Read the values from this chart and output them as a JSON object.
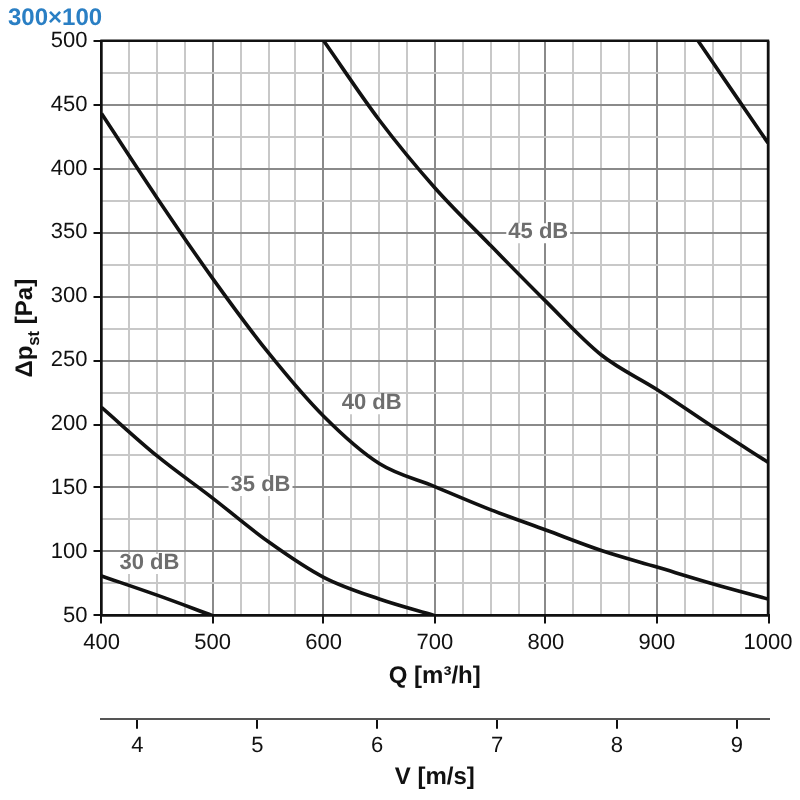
{
  "chart_data": {
    "type": "line",
    "title": "300×100",
    "xlabel": "Q [m³/h]",
    "ylabel": "Δp$_{st}$ [Pa]",
    "x2label": "V [m/s]",
    "xlim": [
      400,
      1000
    ],
    "xticks": [
      400,
      {
        "value": 425,
        "label": null
      },
      {
        "value": 450,
        "label": null
      },
      {
        "value": 475,
        "label": null
      },
      500,
      {
        "value": 525,
        "label": null
      },
      {
        "value": 550,
        "label": null
      },
      {
        "value": 575,
        "label": null
      },
      600,
      {
        "value": 625,
        "label": null
      },
      {
        "value": 650,
        "label": null
      },
      {
        "value": 675,
        "label": null
      },
      700,
      {
        "value": 725,
        "label": null
      },
      {
        "value": 750,
        "label": null
      },
      {
        "value": 775,
        "label": null
      },
      800,
      {
        "value": 825,
        "label": null
      },
      {
        "value": 850,
        "label": null
      },
      {
        "value": 875,
        "label": null
      },
      900,
      {
        "value": 925,
        "label": null
      },
      {
        "value": 950,
        "label": null
      },
      {
        "value": 975,
        "label": null
      },
      1000
    ],
    "ylim": [
      50,
      500
    ],
    "yticks": [
      50,
      {
        "value": 75,
        "label": null
      },
      100,
      {
        "value": 125,
        "label": null
      },
      150,
      {
        "value": 175,
        "label": null
      },
      200,
      {
        "value": 225,
        "label": null
      },
      250,
      {
        "value": 275,
        "label": null
      },
      300,
      {
        "value": 325,
        "label": null
      },
      350,
      {
        "value": 375,
        "label": null
      },
      400,
      {
        "value": 425,
        "label": null
      },
      450,
      {
        "value": 475,
        "label": null
      },
      500
    ],
    "x2lim": [
      3.7,
      9.26
    ],
    "x2ticks": [
      4,
      5,
      6,
      7,
      8,
      9
    ],
    "grid": true,
    "legend": false,
    "marker": "none",
    "line_style": "solid",
    "series": [
      {
        "color": "#111111",
        "x": [
          400,
          450,
          500
        ],
        "values": [
          81,
          66,
          50
        ]
      },
      {
        "color": "#111111",
        "x": [
          400,
          450,
          500,
          550,
          600,
          650,
          700
        ],
        "values": [
          213,
          175,
          142,
          108,
          80,
          63,
          50
        ]
      },
      {
        "color": "#111111",
        "x": [
          400,
          450,
          500,
          550,
          600,
          650,
          700,
          750,
          800,
          850,
          900,
          950,
          1000
        ],
        "values": [
          443,
          377,
          314,
          256,
          206,
          169,
          151,
          133,
          117,
          101,
          88,
          75,
          63
        ]
      },
      {
        "color": "#111111",
        "x": [
          600,
          650,
          700,
          750,
          800,
          850,
          900,
          950,
          1000
        ],
        "values": [
          500,
          438,
          385,
          340,
          296,
          254,
          227,
          198,
          170
        ]
      },
      {
        "color": "#111111",
        "x": [
          937,
          1000
        ],
        "values": [
          500,
          420
        ]
      }
    ],
    "annotations": [
      {
        "text": "30 dB",
        "x": 400,
        "y": 81
      },
      {
        "text": "35 dB",
        "x": 500,
        "y": 142
      },
      {
        "text": "40 dB",
        "x": 600,
        "y": 206
      },
      {
        "text": "45 dB",
        "x": 750,
        "y": 340
      }
    ]
  }
}
